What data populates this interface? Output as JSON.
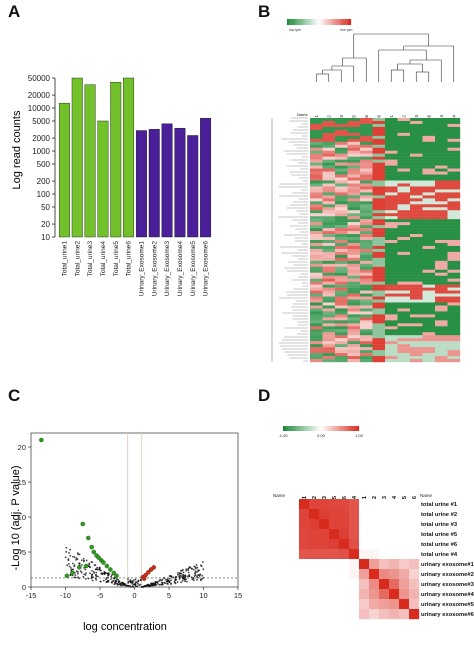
{
  "panels": [
    "A",
    "B",
    "C",
    "D"
  ],
  "colors": {
    "green_bar": "#73c12a",
    "purple_bar": "#4a1f99",
    "heat_green": "#1c8a3a",
    "heat_red": "#d92a1e",
    "volcano_black": "#111111",
    "volcano_green": "#2f9a1d",
    "volcano_red": "#d6281c"
  },
  "chart_data": [
    {
      "id": "A",
      "type": "bar",
      "ylabel": "Log read counts",
      "yscale": "log",
      "ylim": [
        10,
        50000
      ],
      "yticks": [
        "10",
        "20",
        "50",
        "100",
        "200",
        "500",
        "1000",
        "2000",
        "5000",
        "10000",
        "20000",
        "50000"
      ],
      "categories": [
        "Total_urine1",
        "Total_urine2",
        "Total_urine3",
        "Total_urine4",
        "Total_urine5",
        "Total_urine6",
        "Urinary_Exosome1",
        "Urinary_Exosome2",
        "Urinary_Exosome3",
        "Urinary_Exosome4",
        "Urinary_Exosome5",
        "Urinary_Exosome6"
      ],
      "values": [
        13000,
        50000,
        35000,
        5000,
        40000,
        50000,
        3000,
        3200,
        4300,
        3400,
        2300,
        5800
      ],
      "bar_colors": [
        "#73c12a",
        "#73c12a",
        "#73c12a",
        "#73c12a",
        "#73c12a",
        "#73c12a",
        "#4a1f99",
        "#4a1f99",
        "#4a1f99",
        "#4a1f99",
        "#4a1f99",
        "#4a1f99"
      ]
    },
    {
      "id": "B",
      "type": "heatmap",
      "legend_low": "low tpm",
      "legend_high": "rise tpm",
      "row_header": "Name",
      "columns": [
        "total_urine1",
        "total_urine2",
        "total_urine3",
        "total_urine5",
        "total_urine6",
        "urinary_exosome5",
        "urinary_exosome1",
        "urinary_exosome2",
        "urinary_exosome3",
        "urinary_exosome6",
        "urinary_exosome4",
        "total_urine4"
      ],
      "colors": [
        "#1c8a3a",
        "#ffffff",
        "#d92a1e"
      ]
    },
    {
      "id": "C",
      "type": "scatter",
      "xlabel": "log concentration",
      "ylabel": "-Log 10 (adj. P value)",
      "xlim": [
        -15,
        15
      ],
      "ylim": [
        0,
        22
      ],
      "xticks": [
        -15,
        -10,
        -5,
        0,
        5,
        10,
        15
      ],
      "yticks": [
        0,
        5,
        10,
        15,
        20
      ],
      "threshold_y": 1.3,
      "vlines": [
        -1,
        1
      ],
      "highlight_points": [
        {
          "x": -13.5,
          "y": 21,
          "color": "green"
        },
        {
          "x": -7.5,
          "y": 9,
          "color": "green"
        },
        {
          "x": -6.7,
          "y": 7,
          "color": "green"
        },
        {
          "x": -6.2,
          "y": 5.7,
          "color": "green"
        },
        {
          "x": -5.9,
          "y": 5,
          "color": "green"
        },
        {
          "x": -5.5,
          "y": 4.5,
          "color": "green"
        },
        {
          "x": -5.2,
          "y": 4.2,
          "color": "green"
        },
        {
          "x": -4.8,
          "y": 3.8,
          "color": "green"
        },
        {
          "x": -4.5,
          "y": 3.5,
          "color": "green"
        },
        {
          "x": -4.0,
          "y": 3.0,
          "color": "green"
        },
        {
          "x": -3.5,
          "y": 2.5,
          "color": "green"
        },
        {
          "x": -3.0,
          "y": 2.0,
          "color": "green"
        },
        {
          "x": -2.6,
          "y": 1.6,
          "color": "green"
        },
        {
          "x": -7.0,
          "y": 3.0,
          "color": "green"
        },
        {
          "x": -8.0,
          "y": 2.8,
          "color": "green"
        },
        {
          "x": -9.0,
          "y": 2.0,
          "color": "green"
        },
        {
          "x": -9.8,
          "y": 1.6,
          "color": "green"
        },
        {
          "x": 1.2,
          "y": 1.4,
          "color": "red"
        },
        {
          "x": 1.6,
          "y": 1.7,
          "color": "red"
        },
        {
          "x": 2.0,
          "y": 2.1,
          "color": "red"
        },
        {
          "x": 2.4,
          "y": 2.5,
          "color": "red"
        },
        {
          "x": 2.8,
          "y": 2.8,
          "color": "red"
        },
        {
          "x": 1.4,
          "y": 1.2,
          "color": "red"
        }
      ]
    },
    {
      "id": "D",
      "type": "heatmap",
      "legend_ticks": [
        "-1.00",
        "0.00",
        "1.00"
      ],
      "row_header": "Name",
      "columns": [
        "total urine #1",
        "total urine #2",
        "total urine #3",
        "total urine #5",
        "total urine #6",
        "total urine #4",
        "urinary exosome#1",
        "urinary exosome#2",
        "urinary exosome#3",
        "urinary exosome#4",
        "urinary exosome#5",
        "urinary exosome#6"
      ],
      "rows": [
        "total urine #1",
        "total urine #2",
        "total urine #3",
        "total urine #5",
        "total urine #6",
        "total urine #4",
        "urinary exosome#1",
        "urinary exosome#2",
        "urinary exosome#3",
        "urinary exosome#4",
        "urinary exosome#5",
        "urinary exosome#6"
      ],
      "values": [
        [
          1.0,
          0.88,
          0.88,
          0.86,
          0.86,
          0.8,
          0.0,
          0.0,
          0.0,
          0.0,
          0.0,
          0.0
        ],
        [
          0.88,
          1.0,
          0.9,
          0.88,
          0.88,
          0.8,
          0.0,
          0.0,
          0.0,
          0.0,
          0.0,
          0.0
        ],
        [
          0.88,
          0.9,
          1.0,
          0.88,
          0.88,
          0.8,
          0.0,
          0.0,
          0.0,
          0.0,
          0.0,
          0.0
        ],
        [
          0.86,
          0.88,
          0.88,
          1.0,
          0.9,
          0.8,
          0.0,
          0.0,
          0.0,
          0.0,
          0.0,
          0.0
        ],
        [
          0.86,
          0.88,
          0.88,
          0.9,
          1.0,
          0.82,
          0.0,
          0.0,
          0.0,
          0.0,
          0.0,
          0.0
        ],
        [
          0.8,
          0.8,
          0.8,
          0.8,
          0.82,
          1.0,
          0.05,
          0.05,
          0.0,
          0.0,
          0.0,
          0.0
        ],
        [
          0.0,
          0.0,
          0.0,
          0.0,
          0.0,
          0.05,
          1.0,
          0.45,
          0.3,
          0.35,
          0.25,
          0.3
        ],
        [
          0.0,
          0.0,
          0.0,
          0.0,
          0.0,
          0.05,
          0.45,
          1.0,
          0.55,
          0.5,
          0.4,
          0.2
        ],
        [
          0.0,
          0.0,
          0.0,
          0.0,
          0.0,
          0.0,
          0.3,
          0.55,
          1.0,
          0.7,
          0.45,
          0.3
        ],
        [
          0.0,
          0.0,
          0.0,
          0.0,
          0.0,
          0.0,
          0.35,
          0.5,
          0.7,
          1.0,
          0.5,
          0.35
        ],
        [
          0.0,
          0.0,
          0.0,
          0.0,
          0.0,
          0.0,
          0.25,
          0.4,
          0.45,
          0.5,
          1.0,
          0.3
        ],
        [
          0.0,
          0.0,
          0.0,
          0.0,
          0.0,
          0.0,
          0.3,
          0.2,
          0.3,
          0.35,
          0.3,
          1.0
        ]
      ]
    }
  ]
}
